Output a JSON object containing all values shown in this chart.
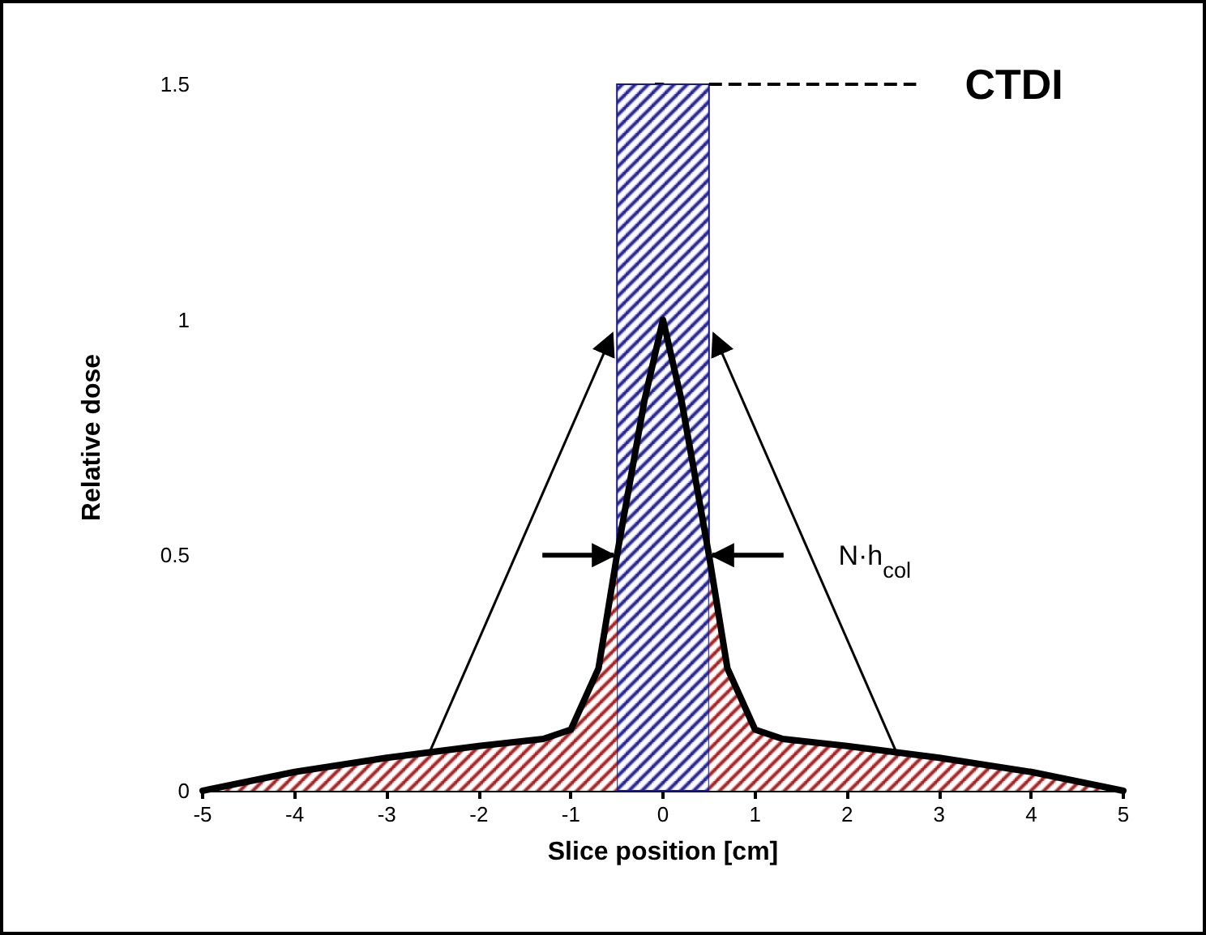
{
  "chart_data": {
    "type": "line",
    "xlabel": "Slice position [cm]",
    "ylabel": "Relative dose",
    "xlim": [
      -5,
      5
    ],
    "xticks": [
      -5,
      -4,
      -3,
      -2,
      -1,
      0,
      1,
      2,
      3,
      4,
      5
    ],
    "ylim": [
      0,
      1.5
    ],
    "yticks": [
      0,
      0.5,
      1,
      1.5
    ],
    "series": [
      {
        "type": "area",
        "color": "#a01818",
        "x": [
          -5,
          -4,
          -3,
          -2,
          -1.3,
          -1,
          -0.7,
          -0.5,
          0,
          0.5,
          0.7,
          1,
          1.3,
          2,
          3,
          4,
          5
        ],
        "values": [
          0,
          0.04,
          0.07,
          0.095,
          0.11,
          0.13,
          0.26,
          0.5,
          null,
          0.5,
          0.26,
          0.13,
          0.11,
          0.095,
          0.07,
          0.04,
          0
        ]
      },
      {
        "type": "line",
        "color": "#000000",
        "x": [
          -5,
          -4,
          -3,
          -2,
          -1.3,
          -1,
          -0.7,
          -0.5,
          -0.2,
          0,
          0.2,
          0.5,
          0.7,
          1,
          1.3,
          2,
          3,
          4,
          5
        ],
        "values": [
          0,
          0.04,
          0.07,
          0.095,
          0.11,
          0.13,
          0.26,
          0.5,
          0.83,
          1.0,
          0.83,
          0.5,
          0.26,
          0.13,
          0.11,
          0.095,
          0.07,
          0.04,
          0
        ]
      }
    ],
    "bands": [
      {
        "axis": "x",
        "from": -0.5,
        "to": 0.5,
        "color": "#1a1a8c"
      }
    ],
    "ref_lines": [
      {
        "axis": "y",
        "value": 1.5,
        "label": "CTDI",
        "line_style": "dashed"
      }
    ],
    "annotations": [
      "N·h$_{col}$"
    ],
    "marker": "none",
    "line_style": "solid"
  }
}
